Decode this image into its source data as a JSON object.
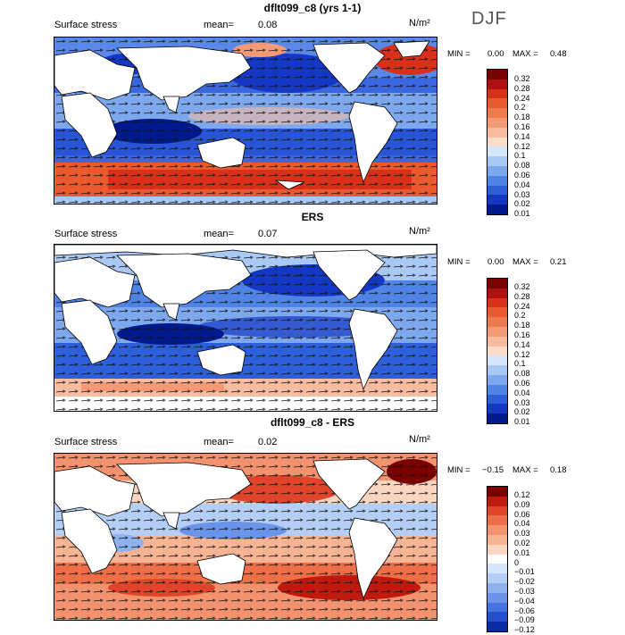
{
  "season": "DJF",
  "units": "N/m²",
  "panels": [
    {
      "title": "dflt099_c8 (yrs 1-1)",
      "variable": "Surface stress",
      "mean_label": "mean=",
      "mean_value": "0.08",
      "min_label": "MIN =",
      "min_value": "0.00",
      "max_label": "MAX =",
      "max_value": "0.48",
      "colorbar_levels": [
        "0.32",
        "0.28",
        "0.24",
        "0.2",
        "0.18",
        "0.16",
        "0.14",
        "0.12",
        "0.1",
        "0.08",
        "0.06",
        "0.04",
        "0.03",
        "0.02",
        "0.01"
      ]
    },
    {
      "title": "ERS",
      "variable": "Surface stress",
      "mean_label": "mean=",
      "mean_value": "0.07",
      "min_label": "MIN =",
      "min_value": "0.00",
      "max_label": "MAX =",
      "max_value": "0.21",
      "colorbar_levels": [
        "0.32",
        "0.28",
        "0.24",
        "0.2",
        "0.18",
        "0.16",
        "0.14",
        "0.12",
        "0.1",
        "0.08",
        "0.06",
        "0.04",
        "0.03",
        "0.02",
        "0.01"
      ]
    },
    {
      "title": "dflt099_c8 - ERS",
      "variable": "Surface stress",
      "mean_label": "mean=",
      "mean_value": "0.02",
      "min_label": "MIN =",
      "min_value": "−0.15",
      "max_label": "MAX =",
      "max_value": "0.18",
      "colorbar_levels": [
        "0.12",
        "0.09",
        "0.06",
        "0.04",
        "0.03",
        "0.02",
        "0.01",
        "0",
        "−0.01",
        "−0.02",
        "−0.03",
        "−0.04",
        "−0.06",
        "−0.09",
        "−0.12"
      ]
    }
  ],
  "colors": {
    "positive_scale": [
      "#7a0000",
      "#b01010",
      "#d8301a",
      "#ea5a2e",
      "#f07a50",
      "#f49a76",
      "#f8bca0",
      "#fadcc8",
      "#d6e6fb",
      "#a9c8f4",
      "#7ea8ee",
      "#4f84e6",
      "#2e5fdb",
      "#1538c4",
      "#001a8e"
    ],
    "diff_scale": [
      "#7a0000",
      "#c01a10",
      "#e0442a",
      "#ee6e48",
      "#f3926e",
      "#f7b494",
      "#fad5c0",
      "#ffffff",
      "#d6e6fb",
      "#b4cef5",
      "#8fb2ef",
      "#6a94ea",
      "#4674e2",
      "#2450cf",
      "#0a2aa8"
    ]
  }
}
